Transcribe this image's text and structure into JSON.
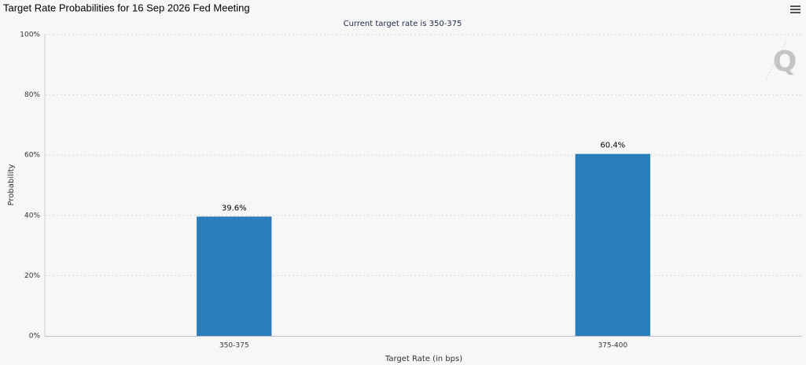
{
  "chart_data": {
    "type": "bar",
    "title": "Target Rate Probabilities for 16 Sep 2026 Fed Meeting",
    "subtitle": "Current target rate is 350-375",
    "x_label": "Target Rate (in bps)",
    "y_label": "Probability",
    "categories": [
      "350-375",
      "375-400"
    ],
    "values": [
      39.6,
      60.4
    ],
    "value_labels": [
      "39.6%",
      "60.4%"
    ],
    "color": "#2a7fba",
    "ylim": [
      0,
      100
    ],
    "yticks": [
      {
        "value": 0,
        "label": "0%"
      },
      {
        "value": 20,
        "label": "20%"
      },
      {
        "value": 40,
        "label": "40%"
      },
      {
        "value": 60,
        "label": "60%"
      },
      {
        "value": 80,
        "label": "80%"
      },
      {
        "value": 100,
        "label": "100%"
      }
    ],
    "grid": true
  }
}
